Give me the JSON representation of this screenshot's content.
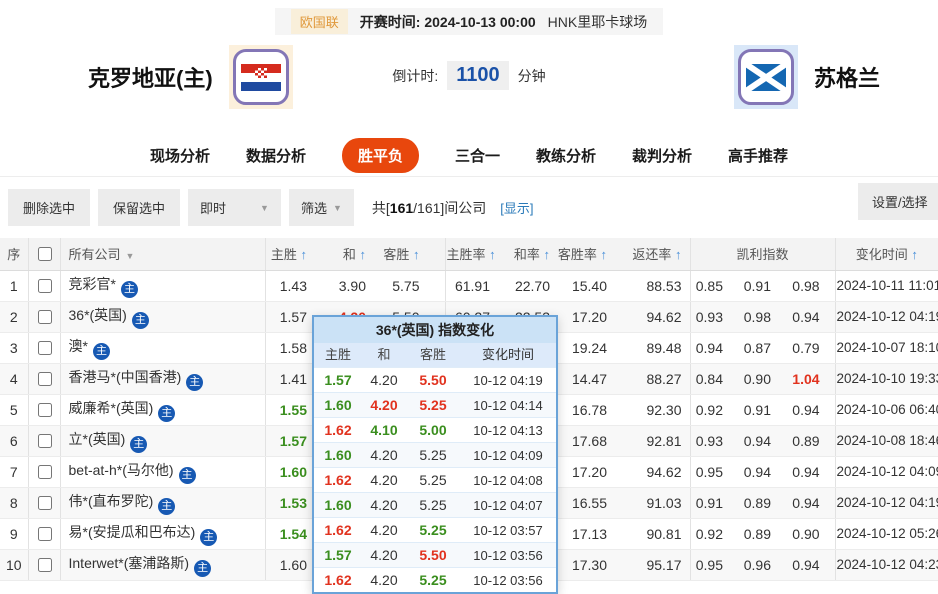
{
  "top_bar": {
    "league": "欧国联",
    "kickoff_label": "开赛时间:",
    "kickoff_time": "2024-10-13 00:00",
    "venue": "HNK里耶卡球场"
  },
  "match": {
    "home_name": "克罗地亚(主)",
    "away_name": "苏格兰",
    "countdown_label": "倒计时:",
    "countdown_value": "1100",
    "countdown_unit": "分钟"
  },
  "nav": {
    "tabs": [
      {
        "label": "现场分析",
        "active": false
      },
      {
        "label": "数据分析",
        "active": false
      },
      {
        "label": "胜平负",
        "active": true
      },
      {
        "label": "三合一",
        "active": false
      },
      {
        "label": "教练分析",
        "active": false
      },
      {
        "label": "裁判分析",
        "active": false
      },
      {
        "label": "高手推荐",
        "active": false
      }
    ]
  },
  "toolbar": {
    "delete_label": "删除选中",
    "keep_label": "保留选中",
    "realtime_label": "即时",
    "filter_label": "筛选",
    "count_prefix": "共[",
    "count_main": "161",
    "count_rest": "/161]间公司",
    "show_link": "[显示]",
    "settings_label": "设置/选择"
  },
  "icons": {
    "sort_asc": "↑",
    "dropdown": "▼",
    "host_badge": "主"
  },
  "table": {
    "headers": {
      "no": "序",
      "company": "所有公司",
      "home": "主胜",
      "draw": "和",
      "away": "客胜",
      "home_rate": "主胜率",
      "draw_rate": "和率",
      "away_rate": "客胜率",
      "return_rate": "返还率",
      "kelly": "凯利指数",
      "time": "变化时间"
    },
    "rows": [
      {
        "no": "1",
        "company": "竞彩官*",
        "home": "1.43",
        "hc": "",
        "draw": "3.90",
        "dc": "",
        "away": "5.75",
        "hr": "61.91",
        "dr": "22.70",
        "ar": "15.40",
        "rr": "88.53",
        "k1": "0.85",
        "k2": "0.91",
        "k3": "0.98",
        "k3c": "",
        "time": "2024-10-11 11:01"
      },
      {
        "no": "2",
        "company": "36*(英国)",
        "home": "1.57",
        "hc": "",
        "draw": "4.20",
        "dc": "r",
        "away": "5.50",
        "hr": "60.27",
        "dr": "22.53",
        "ar": "17.20",
        "rr": "94.62",
        "k1": "0.93",
        "k2": "0.98",
        "k3": "0.94",
        "k3c": "",
        "time": "2024-10-12 04:19"
      },
      {
        "no": "3",
        "company": "澳*",
        "home": "1.58",
        "hc": "",
        "draw": "",
        "dc": "",
        "away": "",
        "hr": "",
        "dr": "",
        "ar": "19.24",
        "rr": "89.48",
        "k1": "0.94",
        "k2": "0.87",
        "k3": "0.79",
        "k3c": "",
        "time": "2024-10-07 18:10"
      },
      {
        "no": "4",
        "company": "香港马*(中国香港)",
        "home": "1.41",
        "hc": "",
        "draw": "",
        "dc": "",
        "away": "",
        "hr": "",
        "dr": "",
        "ar": "14.47",
        "rr": "88.27",
        "k1": "0.84",
        "k2": "0.90",
        "k3": "1.04",
        "k3c": "r",
        "time": "2024-10-10 19:33"
      },
      {
        "no": "5",
        "company": "威廉希*(英国)",
        "home": "1.55",
        "hc": "g",
        "draw": "",
        "dc": "",
        "away": "",
        "hr": "",
        "dr": "",
        "ar": "16.78",
        "rr": "92.30",
        "k1": "0.92",
        "k2": "0.91",
        "k3": "0.94",
        "k3c": "",
        "time": "2024-10-06 06:40"
      },
      {
        "no": "6",
        "company": "立*(英国)",
        "home": "1.57",
        "hc": "g",
        "draw": "",
        "dc": "",
        "away": "",
        "hr": "",
        "dr": "",
        "ar": "17.68",
        "rr": "92.81",
        "k1": "0.93",
        "k2": "0.94",
        "k3": "0.89",
        "k3c": "",
        "time": "2024-10-08 18:46"
      },
      {
        "no": "7",
        "company": "bet-at-h*(马尔他)",
        "home": "1.60",
        "hc": "g",
        "draw": "",
        "dc": "",
        "away": "",
        "hr": "",
        "dr": "",
        "ar": "17.20",
        "rr": "94.62",
        "k1": "0.95",
        "k2": "0.94",
        "k3": "0.94",
        "k3c": "",
        "time": "2024-10-12 04:09"
      },
      {
        "no": "8",
        "company": "伟*(直布罗陀)",
        "home": "1.53",
        "hc": "g",
        "draw": "",
        "dc": "",
        "away": "",
        "hr": "",
        "dr": "",
        "ar": "16.55",
        "rr": "91.03",
        "k1": "0.91",
        "k2": "0.89",
        "k3": "0.94",
        "k3c": "",
        "time": "2024-10-12 04:19"
      },
      {
        "no": "9",
        "company": "易*(安提瓜和巴布达)",
        "home": "1.54",
        "hc": "g",
        "draw": "",
        "dc": "",
        "away": "",
        "hr": "",
        "dr": "",
        "ar": "17.13",
        "rr": "90.81",
        "k1": "0.92",
        "k2": "0.89",
        "k3": "0.90",
        "k3c": "",
        "time": "2024-10-12 05:26"
      },
      {
        "no": "10",
        "company": "Interwet*(塞浦路斯)",
        "home": "1.60",
        "hc": "",
        "draw": "",
        "dc": "",
        "away": "",
        "hr": "",
        "dr": "",
        "ar": "17.30",
        "rr": "95.17",
        "k1": "0.95",
        "k2": "0.96",
        "k3": "0.94",
        "k3c": "",
        "time": "2024-10-12 04:23"
      }
    ]
  },
  "popup": {
    "title": "36*(英国) 指数变化",
    "headers": {
      "home": "主胜",
      "draw": "和",
      "away": "客胜",
      "time": "变化时间"
    },
    "rows": [
      {
        "home": "1.57",
        "hc": "g",
        "draw": "4.20",
        "dc": "",
        "away": "5.50",
        "ac": "r",
        "time": "10-12 04:19"
      },
      {
        "home": "1.60",
        "hc": "g",
        "draw": "4.20",
        "dc": "r",
        "away": "5.25",
        "ac": "r",
        "time": "10-12 04:14"
      },
      {
        "home": "1.62",
        "hc": "r",
        "draw": "4.10",
        "dc": "g",
        "away": "5.00",
        "ac": "g",
        "time": "10-12 04:13"
      },
      {
        "home": "1.60",
        "hc": "g",
        "draw": "4.20",
        "dc": "",
        "away": "5.25",
        "ac": "",
        "time": "10-12 04:09"
      },
      {
        "home": "1.62",
        "hc": "r",
        "draw": "4.20",
        "dc": "",
        "away": "5.25",
        "ac": "",
        "time": "10-12 04:08"
      },
      {
        "home": "1.60",
        "hc": "g",
        "draw": "4.20",
        "dc": "",
        "away": "5.25",
        "ac": "",
        "time": "10-12 04:07"
      },
      {
        "home": "1.62",
        "hc": "r",
        "draw": "4.20",
        "dc": "",
        "away": "5.25",
        "ac": "g",
        "time": "10-12 03:57"
      },
      {
        "home": "1.57",
        "hc": "g",
        "draw": "4.20",
        "dc": "",
        "away": "5.50",
        "ac": "r",
        "time": "10-12 03:56"
      },
      {
        "home": "1.62",
        "hc": "r",
        "draw": "4.20",
        "dc": "",
        "away": "5.25",
        "ac": "g",
        "time": "10-12 03:56"
      }
    ]
  },
  "colors": {
    "accent_active_tab": "#e8470d",
    "odds_up_green": "#3a8e1e",
    "odds_down_red": "#e1321e",
    "sort_arrow_blue": "#4a90d9",
    "countdown_blue": "#1b52a8",
    "league_orange": "#e0983a",
    "popup_border_blue": "#6aa3d8"
  }
}
